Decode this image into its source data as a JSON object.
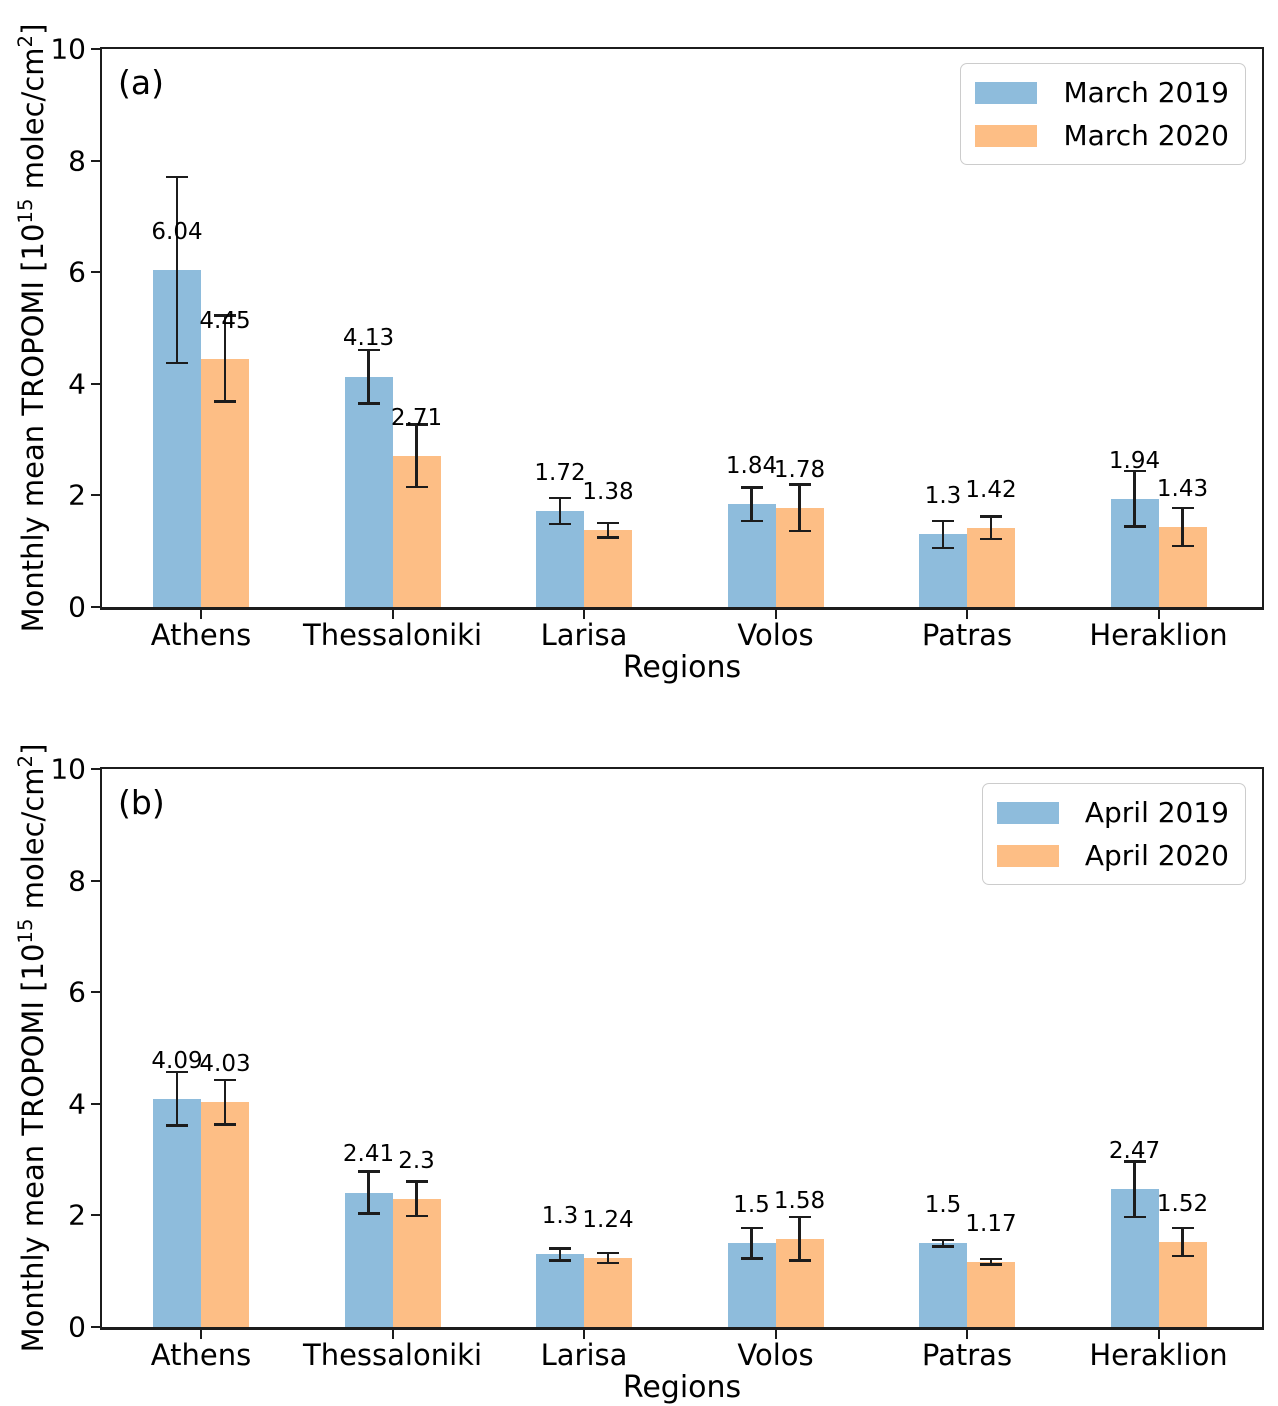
{
  "figure": {
    "background": "#ffffff",
    "series_colors": {
      "year_2019": "#8ebcdc",
      "year_2020": "#fdbe85"
    },
    "axis_color": "#1c1c1c"
  },
  "chart_data": [
    {
      "type": "bar",
      "panel_label": "(a)",
      "xlabel": "Regions",
      "ylabel": "Monthly mean TROPOMI [10¹⁵ molec/cm²]",
      "ylabel_parts": {
        "pre": "Monthly mean TROPOMI [10",
        "sup1": "15",
        "mid": " molec/cm",
        "sup2": "2",
        "post": "]"
      },
      "ylim": [
        0,
        10
      ],
      "yticks": [
        "0",
        "2",
        "4",
        "6",
        "8",
        "10"
      ],
      "grid": false,
      "legend_position": "upper right",
      "categories": [
        "Athens",
        "Thessaloniki",
        "Larisa",
        "Volos",
        "Patras",
        "Heraklion"
      ],
      "series": [
        {
          "name": "March 2019",
          "color": "#8ebcdc",
          "values": [
            6.04,
            4.13,
            1.72,
            1.84,
            1.3,
            1.94
          ],
          "value_labels": [
            "6.04",
            "4.13",
            "1.72",
            "1.84",
            "1.3",
            "1.94"
          ],
          "errors": [
            1.67,
            0.48,
            0.23,
            0.3,
            0.24,
            0.5
          ]
        },
        {
          "name": "March 2020",
          "color": "#fdbe85",
          "values": [
            4.45,
            2.71,
            1.38,
            1.78,
            1.42,
            1.43
          ],
          "value_labels": [
            "4.45",
            "2.71",
            "1.38",
            "1.78",
            "1.42",
            "1.43"
          ],
          "errors": [
            0.77,
            0.56,
            0.13,
            0.42,
            0.2,
            0.34
          ]
        }
      ]
    },
    {
      "type": "bar",
      "panel_label": "(b)",
      "xlabel": "Regions",
      "ylabel": "Monthly mean TROPOMI [10¹⁵ molec/cm²]",
      "ylabel_parts": {
        "pre": "Monthly mean TROPOMI [10",
        "sup1": "15",
        "mid": " molec/cm",
        "sup2": "2",
        "post": "]"
      },
      "ylim": [
        0,
        10
      ],
      "yticks": [
        "0",
        "2",
        "4",
        "6",
        "8",
        "10"
      ],
      "grid": false,
      "legend_position": "upper right",
      "categories": [
        "Athens",
        "Thessaloniki",
        "Larisa",
        "Volos",
        "Patras",
        "Heraklion"
      ],
      "series": [
        {
          "name": "April 2019",
          "color": "#8ebcdc",
          "values": [
            4.09,
            2.41,
            1.3,
            1.5,
            1.5,
            2.47
          ],
          "value_labels": [
            "4.09",
            "2.41",
            "1.3",
            "1.5",
            "1.5",
            "2.47"
          ],
          "errors": [
            0.48,
            0.38,
            0.11,
            0.27,
            0.06,
            0.5
          ]
        },
        {
          "name": "April 2020",
          "color": "#fdbe85",
          "values": [
            4.03,
            2.3,
            1.24,
            1.58,
            1.17,
            1.52
          ],
          "value_labels": [
            "4.03",
            "2.3",
            "1.24",
            "1.58",
            "1.17",
            "1.52"
          ],
          "errors": [
            0.4,
            0.31,
            0.09,
            0.39,
            0.05,
            0.25
          ]
        }
      ]
    }
  ]
}
